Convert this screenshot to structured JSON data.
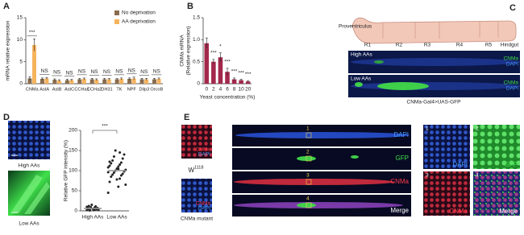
{
  "panels": [
    "A",
    "B",
    "C",
    "D",
    "E"
  ],
  "chart_data": [
    {
      "type": "bar",
      "ylabel": [
        "mRNA relative expression"
      ],
      "categories": [
        "CNMa",
        "AstA",
        "AstB",
        "AstC",
        "CCHa1",
        "CCHa2",
        "DH31",
        "TK",
        "NPF",
        "Dilp3",
        "OrcoB"
      ],
      "series": [
        {
          "name": "No deprivation",
          "color": "#8a6d4e",
          "values": [
            1.2,
            1.1,
            0.9,
            0.8,
            1.0,
            1.0,
            1.0,
            1.0,
            1.1,
            1.0,
            1.0
          ],
          "errors": [
            0.4,
            0.2,
            0.2,
            0.2,
            0.2,
            0.2,
            0.2,
            0.2,
            0.2,
            0.2,
            0.2
          ]
        },
        {
          "name": "AA deprivation",
          "color": "#f5b35c",
          "values": [
            8.8,
            1.2,
            0.7,
            0.8,
            1.1,
            0.9,
            1.0,
            1.1,
            1.2,
            1.0,
            1.1
          ],
          "errors": [
            1.4,
            0.2,
            0.2,
            0.2,
            0.2,
            0.2,
            0.2,
            0.2,
            0.3,
            0.2,
            0.2
          ]
        }
      ],
      "significance": [
        "***",
        "NS",
        "NS",
        "NS",
        "NS",
        "NS",
        "NS",
        "NS",
        "NS",
        "NS",
        "NS"
      ],
      "ylim": [
        0,
        15
      ],
      "yticks": [
        0,
        5,
        10,
        15
      ],
      "legend": "upper right"
    },
    {
      "type": "bar",
      "ylabel": [
        "CNMa mRNA",
        "(Relative expression)"
      ],
      "xlabel": "Yeast concentration (%)",
      "categories": [
        "0",
        "2",
        "4",
        "6",
        "8",
        "10",
        "20"
      ],
      "values": [
        0.92,
        0.5,
        0.6,
        0.27,
        0.1,
        0.08,
        0.05
      ],
      "errors": [
        0.12,
        0.05,
        0.1,
        0.08,
        0.03,
        0.02,
        0.02
      ],
      "color": "#a3294c",
      "significance": [
        null,
        "***",
        "*",
        "***",
        "***",
        "***",
        "***"
      ],
      "ylim": [
        0,
        1.5
      ],
      "yticks": [
        0,
        0.5,
        {
          "value": 1,
          "label": "1.0"
        },
        1.5
      ]
    },
    {
      "type": "strip",
      "ylabel": [
        "Relative GFP intensity (%)"
      ],
      "categories": [
        "High AAs",
        "Low AAs"
      ],
      "points": [
        [
          2,
          5,
          8,
          3,
          12,
          6,
          1,
          4,
          9,
          7,
          15,
          3,
          5,
          10,
          2,
          6,
          8,
          4,
          11,
          3
        ],
        [
          45,
          60,
          72,
          80,
          85,
          88,
          90,
          92,
          95,
          98,
          100,
          102,
          105,
          108,
          110,
          112,
          115,
          118,
          120,
          125,
          130,
          135,
          140,
          150,
          65,
          78,
          96,
          104,
          122,
          145
        ]
      ],
      "means": [
        6,
        100
      ],
      "color": "#222222",
      "significance": "***",
      "ylim": [
        0,
        200
      ],
      "yticks": [
        0,
        50,
        100,
        150,
        200
      ]
    }
  ],
  "panel_c": {
    "gut_labels": [
      "Proventriculus",
      "R1",
      "R2",
      "R3",
      "R4",
      "R5",
      "Hindgut"
    ],
    "images": [
      {
        "condition": "High AAs",
        "channels": [
          "CNMa",
          "DAPI"
        ]
      },
      {
        "condition": "Low AAs",
        "channels": [
          "CNMa",
          "DAPI"
        ]
      }
    ],
    "caption": "CNMa-Gal4>UAS-GFP"
  },
  "panel_d": {
    "images": [
      "High AAs",
      "Low AAs"
    ]
  },
  "panel_e": {
    "small_channels": [
      "CNMa",
      "DAPI"
    ],
    "genotype_1": "W",
    "genotype_1_sup": "1118",
    "genotype_2": "CNMa mutant",
    "strip_numbers": [
      "1",
      "2",
      "3",
      "4"
    ],
    "strip_channels": [
      "DAPI",
      "GFP",
      "CNMa",
      "Merge"
    ],
    "zoom_panels": [
      {
        "number": "1",
        "channel": "DAPI"
      },
      {
        "number": "2",
        "channel": "GFP"
      },
      {
        "number": "3",
        "channel": "CNMa"
      },
      {
        "number": "4",
        "channel": "Merge"
      }
    ]
  }
}
